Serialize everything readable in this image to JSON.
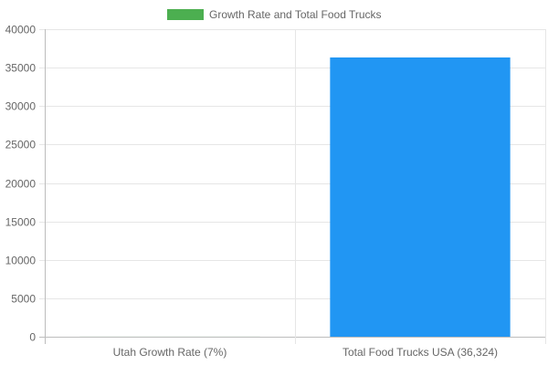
{
  "chart_data": {
    "type": "bar",
    "categories": [
      "Utah Growth Rate (7%)",
      "Total Food Trucks USA (36,324)"
    ],
    "series": [
      {
        "name": "Growth Rate and Total Food Trucks",
        "values": [
          7,
          36324
        ],
        "colors": [
          "#4caf50",
          "#2196f3"
        ]
      }
    ],
    "legend": {
      "position": "top",
      "label": "Growth Rate and Total Food Trucks",
      "swatch_color": "#4caf50"
    },
    "y_ticks": [
      "0",
      "5000",
      "10000",
      "15000",
      "20000",
      "25000",
      "30000",
      "35000",
      "40000"
    ],
    "ylim": [
      0,
      40000
    ],
    "grid": true,
    "title": "",
    "xlabel": "",
    "ylabel": ""
  }
}
